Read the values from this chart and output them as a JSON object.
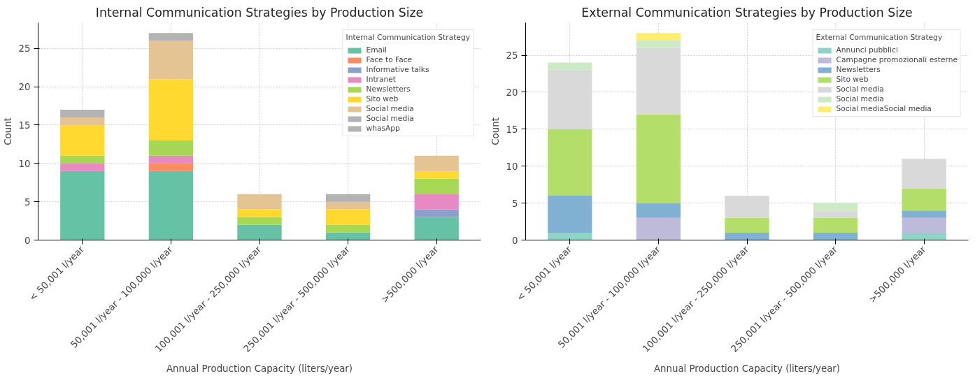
{
  "chart_data": [
    {
      "type": "bar",
      "title": "Internal Communication Strategies by Production Size",
      "xlabel": "Annual Production Capacity (liters/year)",
      "ylabel": "Count",
      "legend_title": "Internal Communication Strategy",
      "categories": [
        "< 50,001 l/year",
        "50,001 l/year - 100,000 l/year",
        "100,001 l/year - 250,000 l/year",
        "250,001 l/year - 500,000 l/year",
        ">500,000 l/year"
      ],
      "stacked": true,
      "ylim": [
        0,
        28.35
      ],
      "yticks": [
        0,
        5,
        10,
        15,
        20,
        25
      ],
      "grid": true,
      "legend": "top right",
      "series": [
        {
          "name": "Email",
          "color": "#66c2a5",
          "values": [
            9,
            9,
            2,
            1,
            3
          ]
        },
        {
          "name": "Face to Face",
          "color": "#fc8d62",
          "values": [
            0,
            1,
            0,
            0,
            0
          ]
        },
        {
          "name": "Informative talks",
          "color": "#8da0cb",
          "values": [
            0,
            0,
            0,
            0,
            1
          ]
        },
        {
          "name": "Intranet",
          "color": "#e78ac3",
          "values": [
            1,
            1,
            0,
            0,
            2
          ]
        },
        {
          "name": "Newsletters",
          "color": "#a6d854",
          "values": [
            1,
            2,
            1,
            1,
            2
          ]
        },
        {
          "name": "Sito web",
          "color": "#ffd92f",
          "values": [
            4,
            8,
            1,
            2,
            1
          ]
        },
        {
          "name": "Social media",
          "color": "#e5c494",
          "values": [
            1,
            5,
            2,
            1,
            2
          ]
        },
        {
          "name": "Social media",
          "color": "#b3b3b3",
          "values": [
            0,
            0,
            0,
            1,
            0
          ]
        },
        {
          "name": "whasApp",
          "color": "#b3b3b3",
          "values": [
            1,
            1,
            0,
            0,
            0
          ]
        }
      ]
    },
    {
      "type": "bar",
      "title": "External Communication Strategies by Production Size",
      "xlabel": "Annual Production Capacity (liters/year)",
      "ylabel": "Count",
      "legend_title": "External Communication Strategy",
      "categories": [
        "< 50,001 l/year",
        "50,001 l/year - 100,000 l/year",
        "100,001 l/year - 250,000 l/year",
        "250,001 l/year - 500,000 l/year",
        ">500,000 l/year"
      ],
      "stacked": true,
      "ylim": [
        0,
        29.4
      ],
      "yticks": [
        0,
        5,
        10,
        15,
        20,
        25
      ],
      "grid": true,
      "legend": "top right",
      "series": [
        {
          "name": "Annunci pubblici",
          "color": "#8dd3c7",
          "values": [
            1,
            0,
            0,
            0,
            1
          ]
        },
        {
          "name": "Campagne promozionali esterne",
          "color": "#bebada",
          "values": [
            0,
            3,
            0,
            0,
            2
          ]
        },
        {
          "name": "Newsletters",
          "color": "#80b1d3",
          "values": [
            5,
            2,
            1,
            1,
            1
          ]
        },
        {
          "name": "Sito web",
          "color": "#b3de69",
          "values": [
            9,
            12,
            2,
            2,
            3
          ]
        },
        {
          "name": "Social media",
          "color": "#d9d9d9",
          "values": [
            8,
            9,
            3,
            1,
            4
          ]
        },
        {
          "name": "Social media",
          "color": "#ccebc5",
          "values": [
            1,
            1,
            0,
            1,
            0
          ]
        },
        {
          "name": "Social mediaSocial media",
          "color": "#ffed6f",
          "values": [
            0,
            1,
            0,
            0,
            0
          ]
        }
      ]
    }
  ]
}
